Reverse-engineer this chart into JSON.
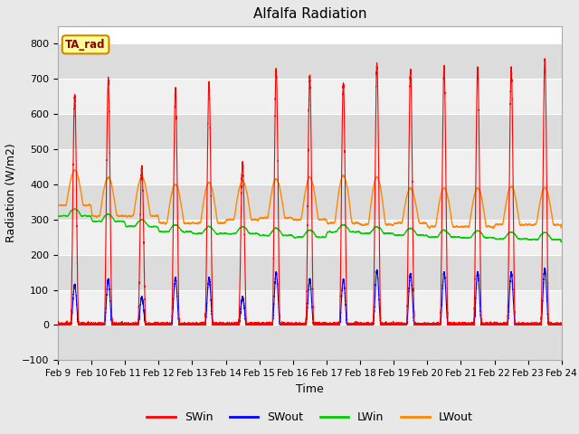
{
  "title": "Alfalfa Radiation",
  "xlabel": "Time",
  "ylabel": "Radiation (W/m2)",
  "ylim": [
    -100,
    850
  ],
  "yticks": [
    -100,
    0,
    100,
    200,
    300,
    400,
    500,
    600,
    700,
    800
  ],
  "xtick_labels": [
    "Feb 9",
    "Feb 10",
    "Feb 11",
    "Feb 12",
    "Feb 13",
    "Feb 14",
    "Feb 15",
    "Feb 16",
    "Feb 17",
    "Feb 18",
    "Feb 19",
    "Feb 20",
    "Feb 21",
    "Feb 22",
    "Feb 23",
    "Feb 24"
  ],
  "annotation_text": "TA_rad",
  "annotation_bg": "#FFFF99",
  "annotation_border": "#CC8800",
  "fig_bg": "#E8E8E8",
  "plot_bg": "#FFFFFF",
  "band_colors": [
    "#DCDCDC",
    "#F0F0F0"
  ],
  "colors": {
    "SWin": "#FF0000",
    "SWout": "#0000FF",
    "LWin": "#00CC00",
    "LWout": "#FF8800"
  },
  "n_days": 15,
  "dt_per_day": 1440,
  "SWin_peaks": [
    650,
    695,
    450,
    670,
    690,
    460,
    725,
    705,
    685,
    740,
    725,
    735,
    730,
    730,
    755
  ],
  "SWout_peaks": [
    115,
    130,
    80,
    135,
    135,
    80,
    150,
    130,
    130,
    155,
    145,
    150,
    150,
    150,
    160
  ],
  "LWout_day_peaks": [
    440,
    420,
    420,
    400,
    405,
    410,
    415,
    420,
    425,
    420,
    390,
    390,
    390,
    395,
    390
  ],
  "LWout_night_vals": [
    340,
    310,
    310,
    290,
    290,
    300,
    305,
    300,
    290,
    285,
    290,
    280,
    280,
    285,
    285
  ],
  "LWin_trend": [
    310,
    295,
    280,
    265,
    260,
    260,
    255,
    250,
    265,
    260,
    255,
    250,
    248,
    245,
    243
  ]
}
